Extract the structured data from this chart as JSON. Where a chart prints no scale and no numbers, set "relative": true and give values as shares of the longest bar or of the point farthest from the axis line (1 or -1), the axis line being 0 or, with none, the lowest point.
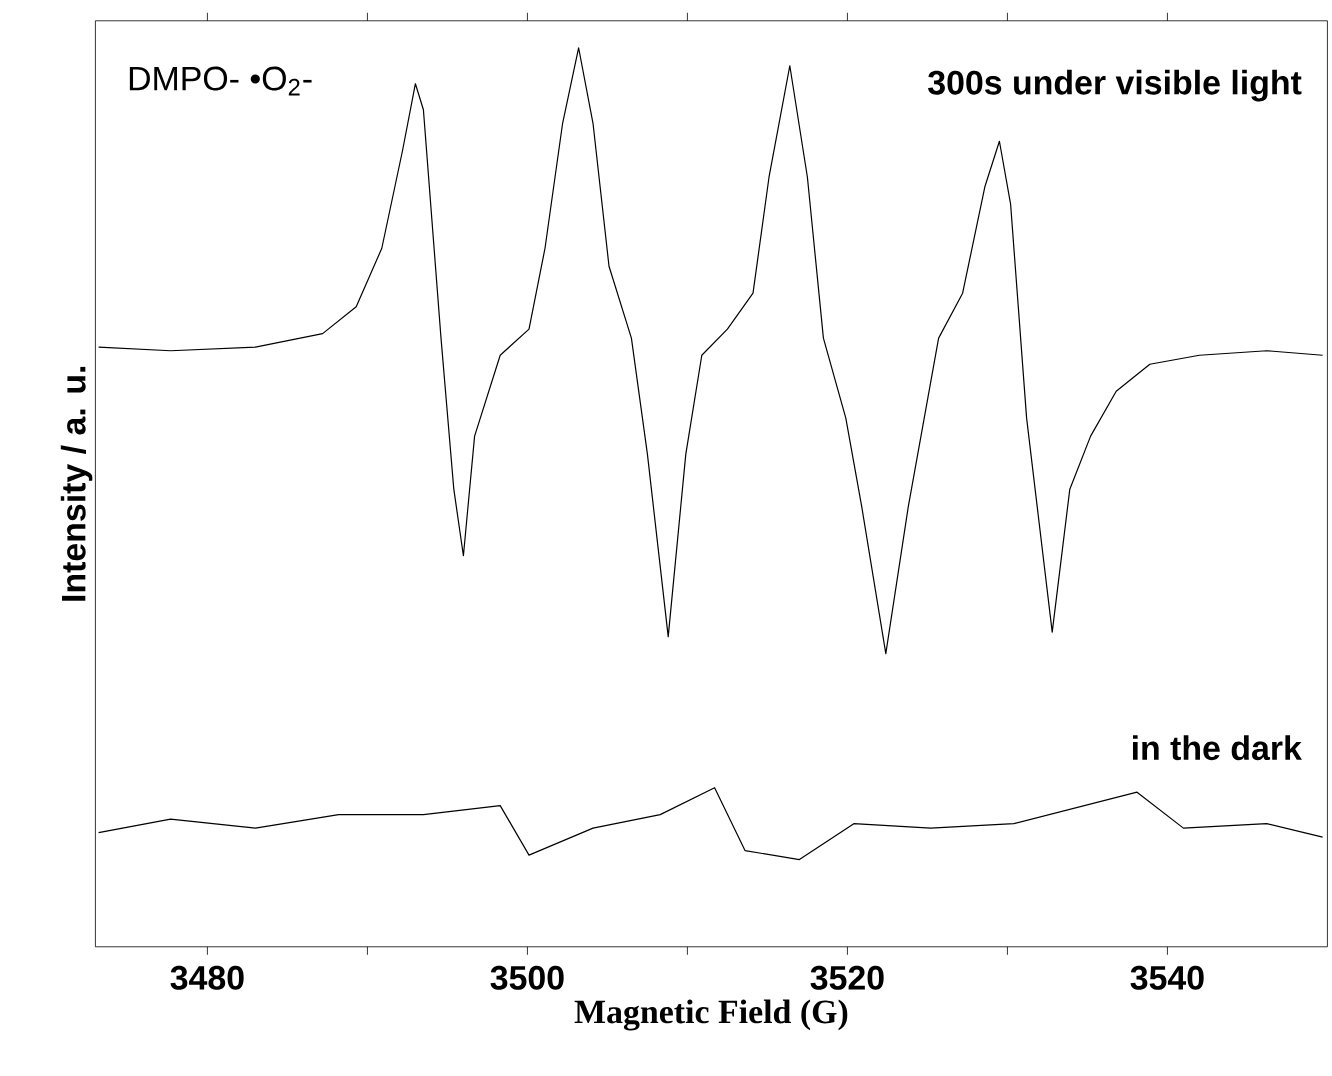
{
  "chart_data": {
    "type": "line",
    "relative": true,
    "xlabel": "Magnetic Field (G)",
    "ylabel": "Intensity / a. u.",
    "annotations": [
      "DMPO- •O$_{2}$-"
    ],
    "xlim": [
      3473,
      3550
    ],
    "xticks": [
      3480,
      {
        "value": 3490,
        "label": null
      },
      3500,
      {
        "value": 3510,
        "label": null
      },
      3520,
      {
        "value": 3530,
        "label": null
      },
      3540
    ],
    "grid": false,
    "legend": false,
    "marker": "none",
    "line_style": "solid",
    "series": [
      {
        "name": "300s under visible light",
        "color": "#000000",
        "x": [
          3473.2,
          3477.7,
          3483.0,
          3487.2,
          3489.3,
          3490.9,
          3492.2,
          3493.0,
          3493.5,
          3494.6,
          3495.4,
          3496.0,
          3496.7,
          3498.3,
          3500.1,
          3501.1,
          3502.2,
          3503.2,
          3504.1,
          3505.1,
          3506.5,
          3507.5,
          3508.8,
          3509.9,
          3510.9,
          3512.5,
          3514.1,
          3515.1,
          3516.4,
          3517.5,
          3518.5,
          3519.9,
          3520.9,
          3522.4,
          3523.8,
          3525.7,
          3527.2,
          3528.6,
          3529.5,
          3530.2,
          3531.2,
          3532.8,
          3533.9,
          3535.2,
          3536.8,
          3538.9,
          3542.0,
          3546.2,
          3549.7
        ],
        "values": [
          0.667,
          0.663,
          0.667,
          0.682,
          0.712,
          0.777,
          0.886,
          0.96,
          0.931,
          0.677,
          0.509,
          0.435,
          0.568,
          0.658,
          0.687,
          0.777,
          0.916,
          1,
          0.916,
          0.757,
          0.677,
          0.548,
          0.345,
          0.548,
          0.658,
          0.687,
          0.727,
          0.856,
          0.98,
          0.856,
          0.677,
          0.588,
          0.489,
          0.326,
          0.489,
          0.677,
          0.727,
          0.846,
          0.896,
          0.826,
          0.588,
          0.35,
          0.509,
          0.568,
          0.618,
          0.648,
          0.658,
          0.663,
          0.658
        ]
      },
      {
        "name": "in the dark",
        "color": "#000000",
        "x": [
          3473.2,
          3477.7,
          3483.0,
          3488.2,
          3493.5,
          3498.3,
          3500.1,
          3504.1,
          3508.3,
          3511.7,
          3513.6,
          3517.0,
          3520.4,
          3525.2,
          3530.4,
          3538.1,
          3541.0,
          3546.2,
          3549.7
        ],
        "values": [
          0.127,
          0.142,
          0.132,
          0.147,
          0.147,
          0.157,
          0.102,
          0.132,
          0.147,
          0.177,
          0.107,
          0.097,
          0.137,
          0.132,
          0.137,
          0.172,
          0.132,
          0.137,
          0.122
        ]
      }
    ]
  }
}
